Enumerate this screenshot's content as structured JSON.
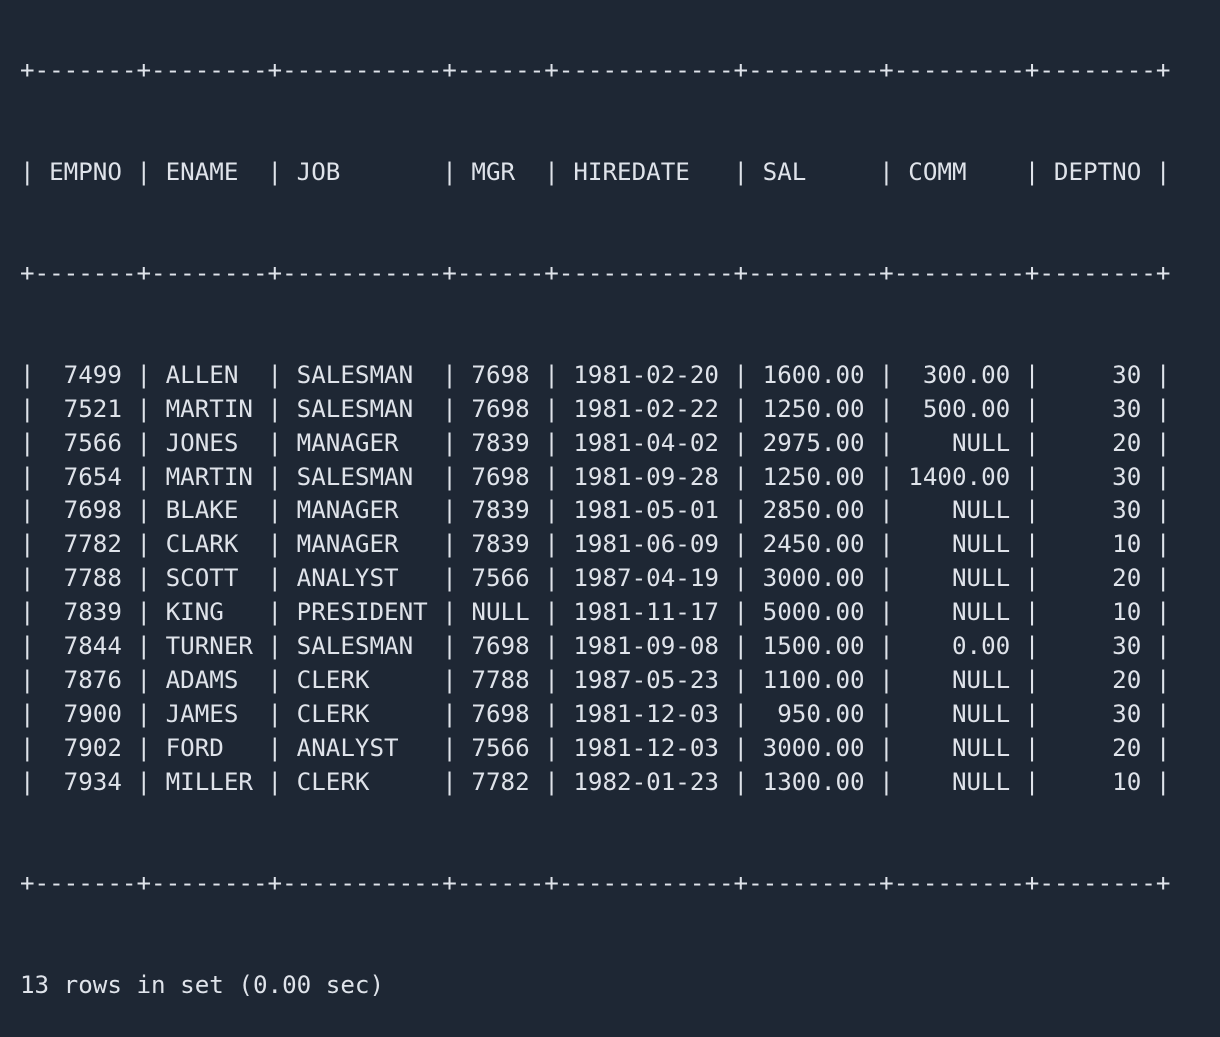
{
  "terminal": {
    "colors": {
      "background": "#1e2734",
      "foreground": "#dfe3ea"
    },
    "columns": [
      {
        "name": "EMPNO",
        "width": 5,
        "align": "right"
      },
      {
        "name": "ENAME",
        "width": 6,
        "align": "left"
      },
      {
        "name": "JOB",
        "width": 9,
        "align": "left"
      },
      {
        "name": "MGR",
        "width": 4,
        "align": "left"
      },
      {
        "name": "HIREDATE",
        "width": 10,
        "align": "left"
      },
      {
        "name": "SAL",
        "width": 7,
        "align": "left"
      },
      {
        "name": "COMM",
        "width": 7,
        "align": "right"
      },
      {
        "name": "DEPTNO",
        "width": 6,
        "align": "right"
      }
    ],
    "rows": [
      [
        "7499",
        "ALLEN",
        "SALESMAN",
        "7698",
        "1981-02-20",
        "1600.00",
        "300.00",
        "30"
      ],
      [
        "7521",
        "MARTIN",
        "SALESMAN",
        "7698",
        "1981-02-22",
        "1250.00",
        "500.00",
        "30"
      ],
      [
        "7566",
        "JONES",
        "MANAGER",
        "7839",
        "1981-04-02",
        "2975.00",
        "NULL",
        "20"
      ],
      [
        "7654",
        "MARTIN",
        "SALESMAN",
        "7698",
        "1981-09-28",
        "1250.00",
        "1400.00",
        "30"
      ],
      [
        "7698",
        "BLAKE",
        "MANAGER",
        "7839",
        "1981-05-01",
        "2850.00",
        "NULL",
        "30"
      ],
      [
        "7782",
        "CLARK",
        "MANAGER",
        "7839",
        "1981-06-09",
        "2450.00",
        "NULL",
        "10"
      ],
      [
        "7788",
        "SCOTT",
        "ANALYST",
        "7566",
        "1987-04-19",
        "3000.00",
        "NULL",
        "20"
      ],
      [
        "7839",
        "KING",
        "PRESIDENT",
        "NULL",
        "1981-11-17",
        "5000.00",
        "NULL",
        "10"
      ],
      [
        "7844",
        "TURNER",
        "SALESMAN",
        "7698",
        "1981-09-08",
        "1500.00",
        "0.00",
        "30"
      ],
      [
        "7876",
        "ADAMS",
        "CLERK",
        "7788",
        "1987-05-23",
        "1100.00",
        "NULL",
        "20"
      ],
      [
        "7900",
        "JAMES",
        "CLERK",
        "7698",
        "1981-12-03",
        " 950.00",
        "NULL",
        "30"
      ],
      [
        "7902",
        "FORD",
        "ANALYST",
        "7566",
        "1981-12-03",
        "3000.00",
        "NULL",
        "20"
      ],
      [
        "7934",
        "MILLER",
        "CLERK",
        "7782",
        "1982-01-23",
        "1300.00",
        "NULL",
        "10"
      ]
    ],
    "status": "13 rows in set (0.00 sec)"
  }
}
